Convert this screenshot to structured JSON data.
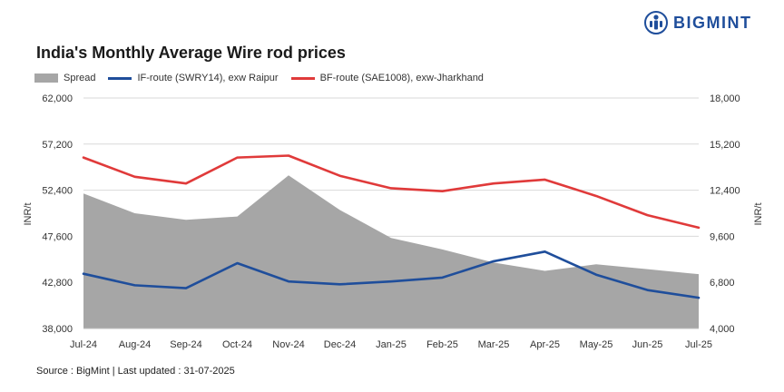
{
  "brand": {
    "name": "BIGMINT"
  },
  "source": "Source : BigMint | Last updated : 31-07-2025",
  "colors": {
    "spread": "#a6a6a6",
    "if_route": "#1f4e9b",
    "bf_route": "#e03a3a",
    "brand": "#1f4e9b"
  },
  "chart_data": {
    "type": "line",
    "title": "India's Monthly Average Wire rod prices",
    "categories": [
      "Jul-24",
      "Aug-24",
      "Sep-24",
      "Oct-24",
      "Nov-24",
      "Dec-24",
      "Jan-25",
      "Feb-25",
      "Mar-25",
      "Apr-25",
      "May-25",
      "Jun-25",
      "Jul-25"
    ],
    "ylabel": "INR/t",
    "y2label": "INR/t",
    "ylim": [
      38000,
      62000
    ],
    "y2lim": [
      4000,
      18000
    ],
    "yticks": [
      "38,000",
      "42,800",
      "47,600",
      "52,400",
      "57,200",
      "62,000"
    ],
    "y2ticks": [
      "4,000",
      "6,800",
      "9,600",
      "12,400",
      "15,200",
      "18,000"
    ],
    "series": [
      {
        "name": "Spread",
        "axis": "right",
        "kind": "area",
        "values": [
          12200,
          11000,
          10600,
          10800,
          13300,
          11200,
          9500,
          8800,
          8000,
          7500,
          7900,
          7600,
          7300
        ]
      },
      {
        "name": "IF-route (SWRY14), exw Raipur",
        "axis": "left",
        "kind": "line",
        "values": [
          43700,
          42500,
          42200,
          44800,
          42900,
          42600,
          42900,
          43300,
          45000,
          46000,
          43600,
          42000,
          41200
        ]
      },
      {
        "name": "BF-route (SAE1008), exw-Jharkhand",
        "axis": "left",
        "kind": "line",
        "values": [
          55800,
          53800,
          53100,
          55800,
          56000,
          53900,
          52600,
          52300,
          53100,
          53500,
          51800,
          49800,
          48500
        ]
      }
    ],
    "grid": "horizontal",
    "legend": "top-left"
  }
}
